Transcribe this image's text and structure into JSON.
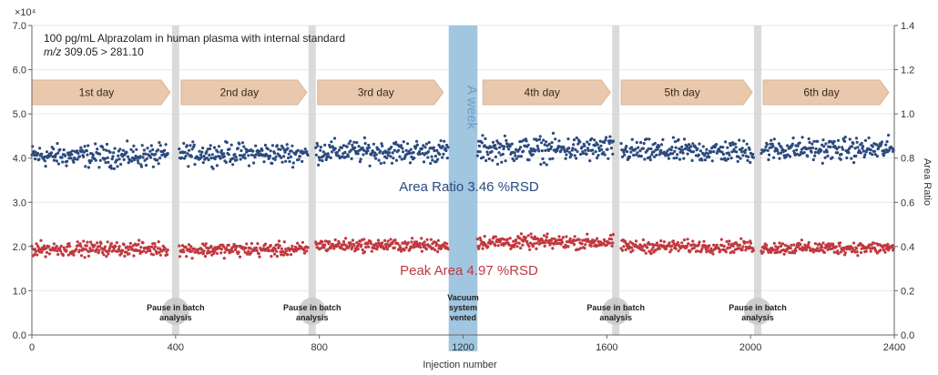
{
  "chart_data": {
    "type": "scatter",
    "annotation_line1": "100 pg/mL Alprazolam in human plasma with internal standard",
    "annotation_mz_prefix": "m/z",
    "annotation_mz_value": "309.05 > 281.10",
    "xlabel": "Injection number",
    "ylabel_right": "Area Ratio",
    "y_exponent_label": "×10⁴",
    "xlim": [
      0,
      2400
    ],
    "ylim_left": [
      0,
      7.0
    ],
    "ylim_right": [
      0,
      1.4
    ],
    "x_ticks": [
      "0",
      "400",
      "800",
      "1200",
      "1600",
      "2000",
      "2400"
    ],
    "y_left_ticks": [
      "0.0",
      "1.0",
      "2.0",
      "3.0",
      "4.0",
      "5.0",
      "6.0",
      "7.0"
    ],
    "y_right_ticks": [
      "0.0",
      "0.2",
      "0.4",
      "0.6",
      "0.8",
      "1.0",
      "1.2",
      "1.4"
    ],
    "grid": true,
    "days": [
      "1st day",
      "2nd day",
      "3rd day",
      "4th day",
      "5th day",
      "6th day"
    ],
    "week_label": "A week",
    "pauses": [
      {
        "x": 400,
        "label_line1": "Pause in batch",
        "label_line2": "analysis"
      },
      {
        "x": 780,
        "label_line1": "Pause in batch",
        "label_line2": "analysis"
      },
      {
        "x": 1625,
        "label_line1": "Pause in batch",
        "label_line2": "analysis"
      },
      {
        "x": 2020,
        "label_line1": "Pause in batch",
        "label_line2": "analysis"
      }
    ],
    "vented": {
      "x_start": 1160,
      "x_end": 1240,
      "label_line1": "Vacuum",
      "label_line2": "system",
      "label_line3": "vented"
    },
    "series": [
      {
        "name": "Area Ratio",
        "label": "Area Ratio 3.46 %RSD",
        "color": "#2b4a7e",
        "segments": [
          {
            "x_range": [
              0,
              380
            ],
            "mean_left": 4.05,
            "spread": 0.18
          },
          {
            "x_range": [
              410,
              770
            ],
            "mean_left": 4.1,
            "spread": 0.17
          },
          {
            "x_range": [
              790,
              1160
            ],
            "mean_left": 4.15,
            "spread": 0.18
          },
          {
            "x_range": [
              1240,
              1620
            ],
            "mean_left": 4.2,
            "spread": 0.2
          },
          {
            "x_range": [
              1640,
              2010
            ],
            "mean_left": 4.15,
            "spread": 0.18
          },
          {
            "x_range": [
              2030,
              2400
            ],
            "mean_left": 4.2,
            "spread": 0.18
          }
        ]
      },
      {
        "name": "Peak Area",
        "label": "Peak Area 4.97 %RSD",
        "color": "#c0383f",
        "segments": [
          {
            "x_range": [
              0,
              380
            ],
            "mean_left": 1.95,
            "spread": 0.11
          },
          {
            "x_range": [
              410,
              770
            ],
            "mean_left": 1.93,
            "spread": 0.11
          },
          {
            "x_range": [
              790,
              1160
            ],
            "mean_left": 2.03,
            "spread": 0.1
          },
          {
            "x_range": [
              1240,
              1620
            ],
            "mean_left": 2.1,
            "spread": 0.11
          },
          {
            "x_range": [
              1640,
              2010
            ],
            "mean_left": 2.0,
            "spread": 0.1
          },
          {
            "x_range": [
              2030,
              2400
            ],
            "mean_left": 1.97,
            "spread": 0.1
          }
        ]
      }
    ]
  }
}
